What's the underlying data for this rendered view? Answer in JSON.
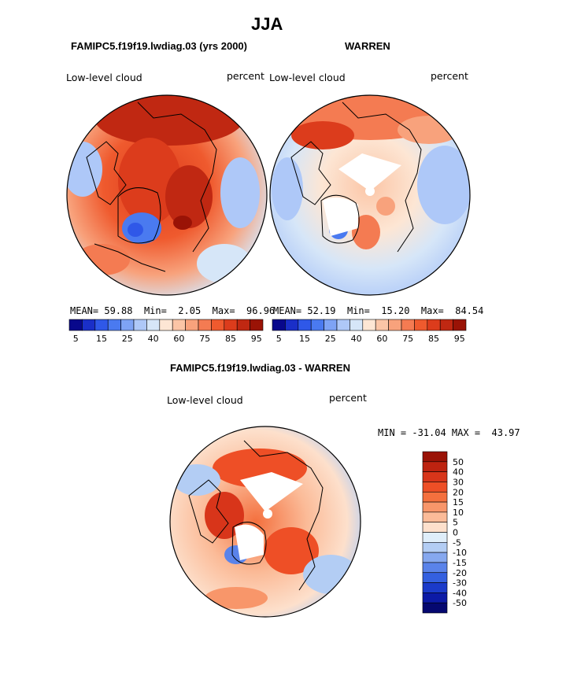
{
  "title": "JJA",
  "panels": [
    {
      "header": "FAMIPC5.f19f19.lwdiag.03 (yrs 2000)",
      "variable_label": "Low-level cloud",
      "units": "percent",
      "stats": {
        "mean_label": "MEAN=",
        "mean": "59.88",
        "min_label": "Min=",
        "min": "2.05",
        "max_label": "Max=",
        "max": "96.96"
      },
      "pattern": "model"
    },
    {
      "header": "WARREN",
      "variable_label": "Low-level cloud",
      "units": "percent",
      "stats": {
        "mean_label": "MEAN=",
        "mean": "52.19",
        "min_label": "Min=",
        "min": "15.20",
        "max_label": "Max=",
        "max": "84.54"
      },
      "pattern": "obs"
    }
  ],
  "colorbar_top": {
    "colors": [
      "#08088c",
      "#1a2fc8",
      "#2f58e8",
      "#4a7af0",
      "#7ea3f5",
      "#aec8f8",
      "#d6e6f8",
      "#fde6d4",
      "#fbc5a6",
      "#f8a27c",
      "#f47b52",
      "#ef5a2e",
      "#dc3c1c",
      "#c02812",
      "#9a1306"
    ],
    "tick_labels": [
      "5",
      "15",
      "25",
      "40",
      "60",
      "75",
      "85",
      "95"
    ]
  },
  "difference_panel": {
    "header": "FAMIPC5.f19f19.lwdiag.03 - WARREN",
    "variable_label": "Low-level cloud",
    "units": "percent",
    "minmax_text": "MIN = -31.04 MAX =  43.97",
    "colorbar": {
      "colors": [
        "#9a1306",
        "#bd2310",
        "#d8351a",
        "#ee4f26",
        "#f4703e",
        "#f8966a",
        "#fbbb98",
        "#fde0cc",
        "#dfeefa",
        "#b3cdf4",
        "#86a8ef",
        "#5a83ea",
        "#3460e0",
        "#1b3bca",
        "#0c1aa6",
        "#050870"
      ],
      "labels": [
        "50",
        "40",
        "30",
        "20",
        "15",
        "10",
        "5",
        "0",
        "-5",
        "-10",
        "-15",
        "-20",
        "-30",
        "-40",
        "-50"
      ]
    }
  }
}
